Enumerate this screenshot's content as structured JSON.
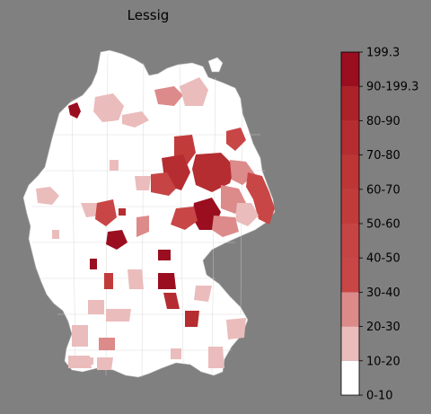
{
  "title": "Lessig",
  "legend": {
    "bins": [
      {
        "label": "0-10",
        "color": "#ffffff"
      },
      {
        "label": "10-20",
        "color": "#ebbcbc"
      },
      {
        "label": "20-30",
        "color": "#dc8a8a"
      },
      {
        "label": "30-40",
        "color": "#c94646"
      },
      {
        "label": "40-50",
        "color": "#c64444"
      },
      {
        "label": "50-60",
        "color": "#c23b3b"
      },
      {
        "label": "60-70",
        "color": "#bd3535"
      },
      {
        "label": "70-80",
        "color": "#b52d31"
      },
      {
        "label": "80-90",
        "color": "#ad2128"
      },
      {
        "label": "90-199.3",
        "color": "#a3192a"
      },
      {
        "label": "199.3",
        "color": "#9a0e20"
      }
    ]
  },
  "colors": {
    "background": "#808080",
    "land": "#ffffff",
    "district_border": "#c8c8c8"
  }
}
